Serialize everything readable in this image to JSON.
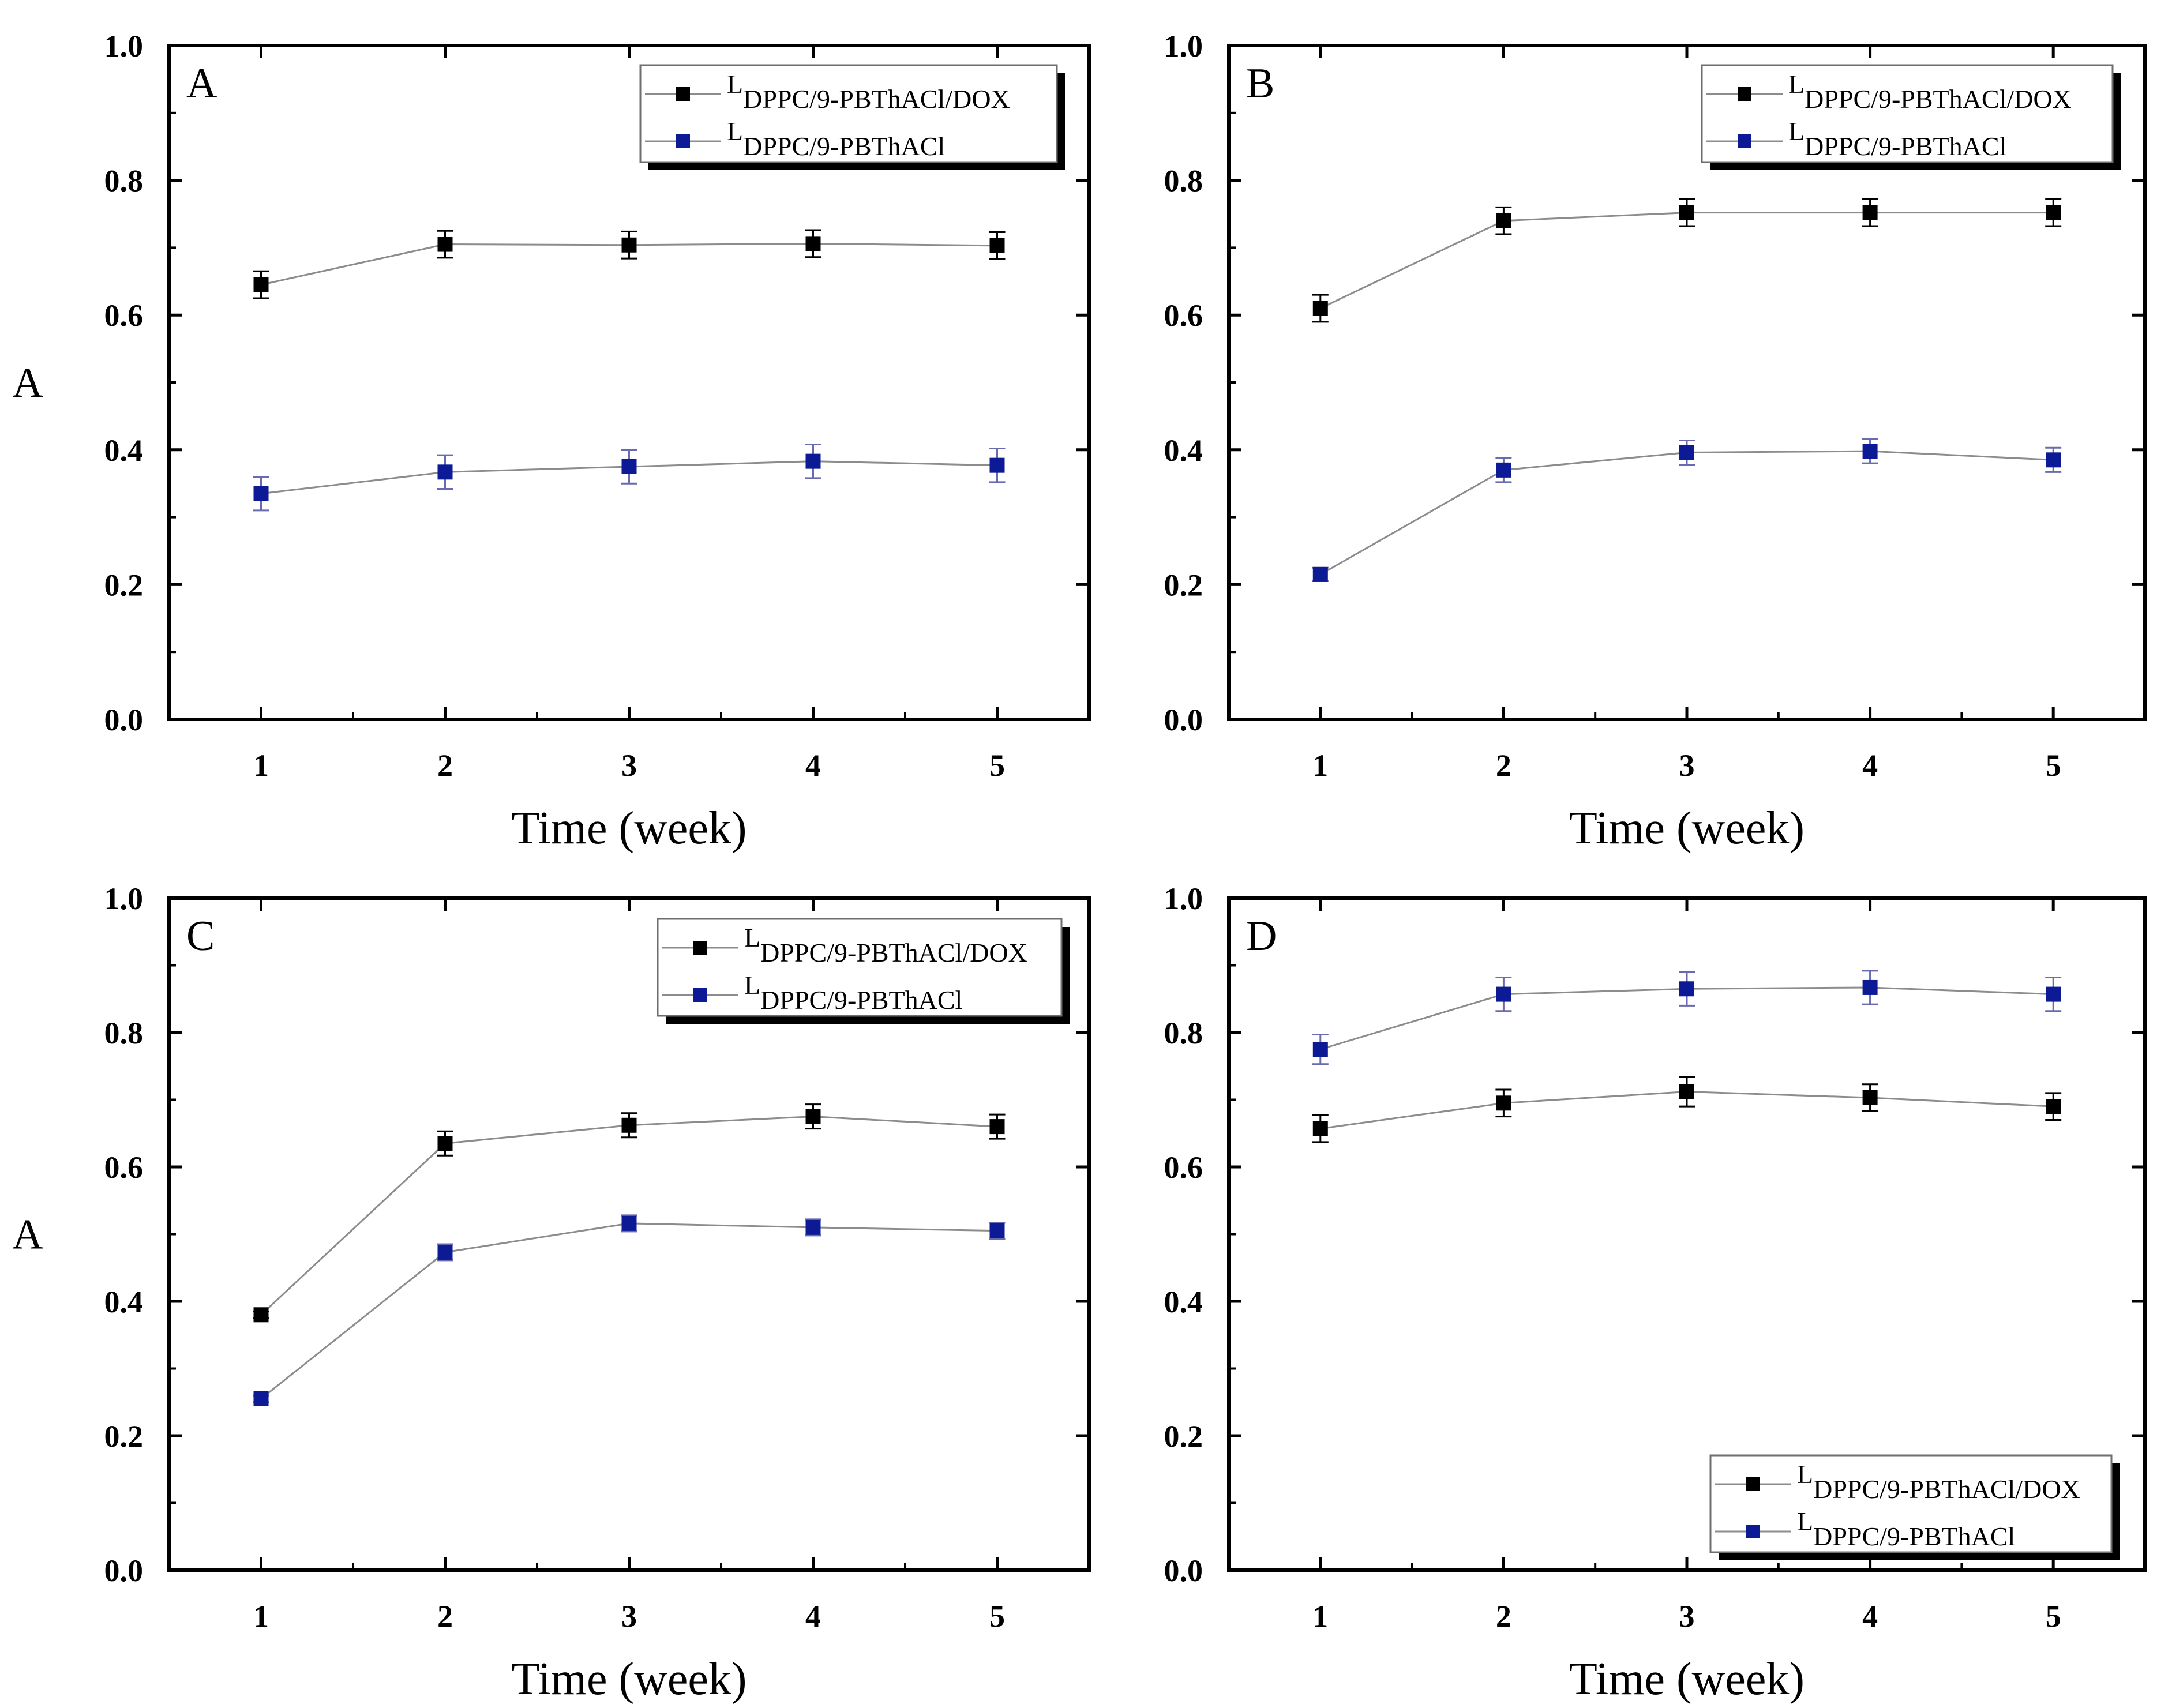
{
  "colors": {
    "series_dox": "#000000",
    "series_plain": "#0d1a96",
    "line": "#8c8c8c",
    "errorbar_plain": "#6a6ab0",
    "axis": "#000000"
  },
  "chart_data": [
    {
      "type": "line",
      "panel": "A",
      "title": "",
      "xlabel": "Time (week)",
      "ylabel": "A",
      "x": [
        1,
        2,
        3,
        4,
        5
      ],
      "xlim": [
        0.5,
        5.5
      ],
      "ylim": [
        0,
        1
      ],
      "xticks": [
        "1",
        "2",
        "3",
        "4",
        "5"
      ],
      "yticks": [
        "0.0",
        "0.2",
        "0.4",
        "0.6",
        "0.8",
        "1.0"
      ],
      "legend_position": "top-right",
      "series": [
        {
          "name_main": "L",
          "name_sub": "DPPC/9-PBThACl/DOX",
          "color": "#000000",
          "values": [
            0.645,
            0.705,
            0.704,
            0.706,
            0.703
          ],
          "errors": [
            0.02,
            0.02,
            0.02,
            0.02,
            0.02
          ]
        },
        {
          "name_main": "L",
          "name_sub": "DPPC/9-PBThACl",
          "color": "#0d1a96",
          "values": [
            0.335,
            0.367,
            0.375,
            0.383,
            0.377
          ],
          "errors": [
            0.025,
            0.025,
            0.025,
            0.025,
            0.025
          ]
        }
      ]
    },
    {
      "type": "line",
      "panel": "B",
      "title": "",
      "xlabel": "Time (week)",
      "ylabel": "",
      "x": [
        1,
        2,
        3,
        4,
        5
      ],
      "xlim": [
        0.5,
        5.5
      ],
      "ylim": [
        0,
        1
      ],
      "xticks": [
        "1",
        "2",
        "3",
        "4",
        "5"
      ],
      "yticks": [
        "0.0",
        "0.2",
        "0.4",
        "0.6",
        "0.8",
        "1.0"
      ],
      "legend_position": "top-right",
      "series": [
        {
          "name_main": "L",
          "name_sub": "DPPC/9-PBThACl/DOX",
          "color": "#000000",
          "values": [
            0.61,
            0.74,
            0.752,
            0.752,
            0.752
          ],
          "errors": [
            0.02,
            0.02,
            0.02,
            0.02,
            0.02
          ]
        },
        {
          "name_main": "L",
          "name_sub": "DPPC/9-PBThACl",
          "color": "#0d1a96",
          "values": [
            0.215,
            0.37,
            0.396,
            0.398,
            0.385
          ],
          "errors": [
            0.01,
            0.018,
            0.018,
            0.018,
            0.018
          ]
        }
      ]
    },
    {
      "type": "line",
      "panel": "C",
      "title": "",
      "xlabel": "Time (week)",
      "ylabel": "A",
      "x": [
        1,
        2,
        3,
        4,
        5
      ],
      "xlim": [
        0.5,
        5.5
      ],
      "ylim": [
        0,
        1
      ],
      "xticks": [
        "1",
        "2",
        "3",
        "4",
        "5"
      ],
      "yticks": [
        "0.0",
        "0.2",
        "0.4",
        "0.6",
        "0.8",
        "1.0"
      ],
      "legend_position": "top-right",
      "series": [
        {
          "name_main": "L",
          "name_sub": "DPPC/9-PBThACl/DOX",
          "color": "#000000",
          "values": [
            0.38,
            0.635,
            0.662,
            0.675,
            0.66
          ],
          "errors": [
            0.005,
            0.018,
            0.018,
            0.018,
            0.018
          ]
        },
        {
          "name_main": "L",
          "name_sub": "DPPC/9-PBThACl",
          "color": "#0d1a96",
          "values": [
            0.255,
            0.473,
            0.516,
            0.51,
            0.505
          ],
          "errors": [
            0.005,
            0.012,
            0.012,
            0.012,
            0.012
          ]
        }
      ]
    },
    {
      "type": "line",
      "panel": "D",
      "title": "",
      "xlabel": "Time (week)",
      "ylabel": "",
      "x": [
        1,
        2,
        3,
        4,
        5
      ],
      "xlim": [
        0.5,
        5.5
      ],
      "ylim": [
        0,
        1
      ],
      "xticks": [
        "1",
        "2",
        "3",
        "4",
        "5"
      ],
      "yticks": [
        "0.0",
        "0.2",
        "0.4",
        "0.6",
        "0.8",
        "1.0"
      ],
      "legend_position": "bottom-right",
      "series": [
        {
          "name_main": "L",
          "name_sub": "DPPC/9-PBThACl/DOX",
          "color": "#000000",
          "values": [
            0.657,
            0.695,
            0.712,
            0.703,
            0.69
          ],
          "errors": [
            0.02,
            0.02,
            0.022,
            0.02,
            0.02
          ]
        },
        {
          "name_main": "L",
          "name_sub": "DPPC/9-PBThACl",
          "color": "#0d1a96",
          "values": [
            0.775,
            0.857,
            0.865,
            0.867,
            0.857
          ],
          "errors": [
            0.022,
            0.025,
            0.025,
            0.025,
            0.025
          ]
        }
      ]
    }
  ]
}
